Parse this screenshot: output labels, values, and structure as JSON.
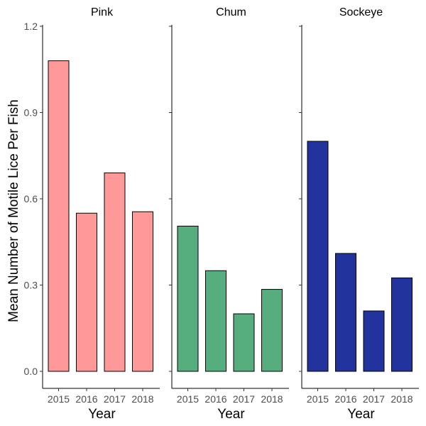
{
  "chart_data": {
    "type": "bar",
    "ylabel": "Mean Number of Motile Lice Per Fish",
    "xlabel": "Year",
    "ylim": [
      0,
      1.2
    ],
    "yticks": [
      "0.0",
      "0.3",
      "0.6",
      "0.9",
      "1.2"
    ],
    "yticks_values": [
      0,
      0.3,
      0.6,
      0.9,
      1.2
    ],
    "categories": [
      "2015",
      "2016",
      "2017",
      "2018"
    ],
    "grid": false,
    "panels": [
      {
        "name": "Pink",
        "color": "#FF9999",
        "values": [
          1.08,
          0.55,
          0.69,
          0.555
        ]
      },
      {
        "name": "Chum",
        "color": "#56AE7E",
        "values": [
          0.505,
          0.35,
          0.2,
          0.285
        ]
      },
      {
        "name": "Sockeye",
        "color": "#23339E",
        "values": [
          0.8,
          0.41,
          0.21,
          0.325
        ]
      }
    ]
  }
}
